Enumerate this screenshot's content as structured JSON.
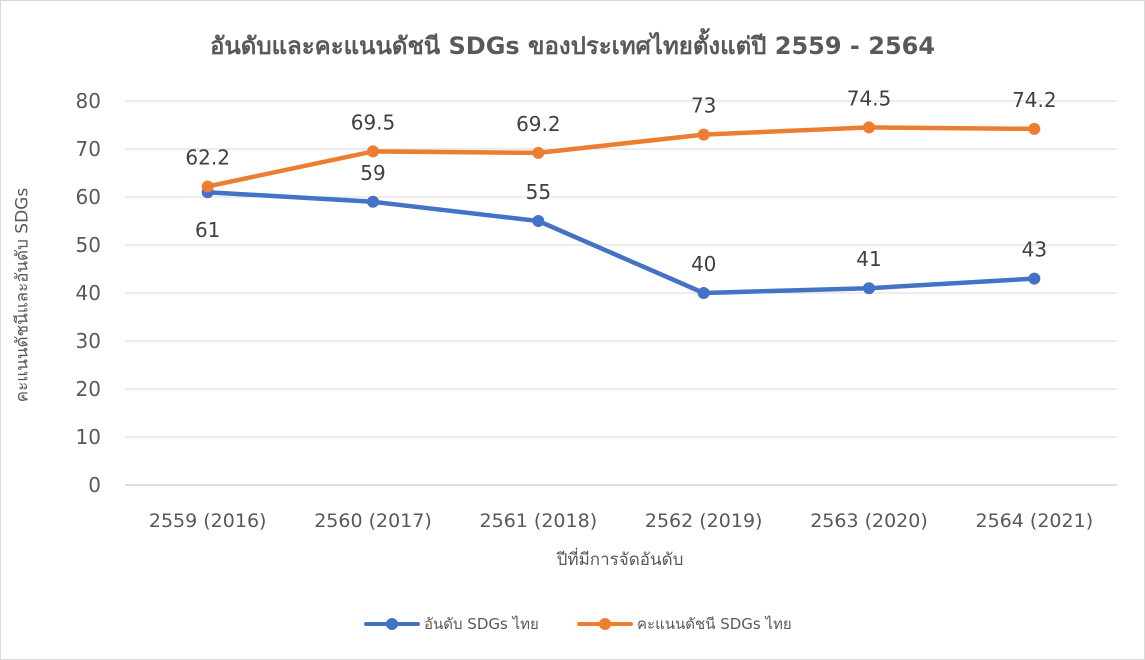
{
  "chart_data": {
    "type": "line",
    "title": "อันดับและคะแนนดัชนี SDGs ของประเทศไทยตั้งแต่ปี 2559 - 2564",
    "xlabel": "ปีที่มีการจัดอันดับ",
    "ylabel": "คะแนนดัชนีและอันดับ SDGs",
    "categories": [
      "2559 (2016)",
      "2560 (2017)",
      "2561 (2018)",
      "2562 (2019)",
      "2563 (2020)",
      "2564 (2021)"
    ],
    "ylim": [
      0,
      80
    ],
    "yticks": [
      0,
      10,
      20,
      30,
      40,
      50,
      60,
      70,
      80
    ],
    "grid": true,
    "legend_position": "bottom",
    "series": [
      {
        "name": "อันดับ SDGs ไทย",
        "values": [
          61,
          59,
          55,
          40,
          41,
          43
        ],
        "color": "#4472c4"
      },
      {
        "name": "คะแนนดัชนี SDGs ไทย",
        "values": [
          62.2,
          69.5,
          69.2,
          73,
          74.5,
          74.2
        ],
        "color": "#ed7d31"
      }
    ]
  }
}
